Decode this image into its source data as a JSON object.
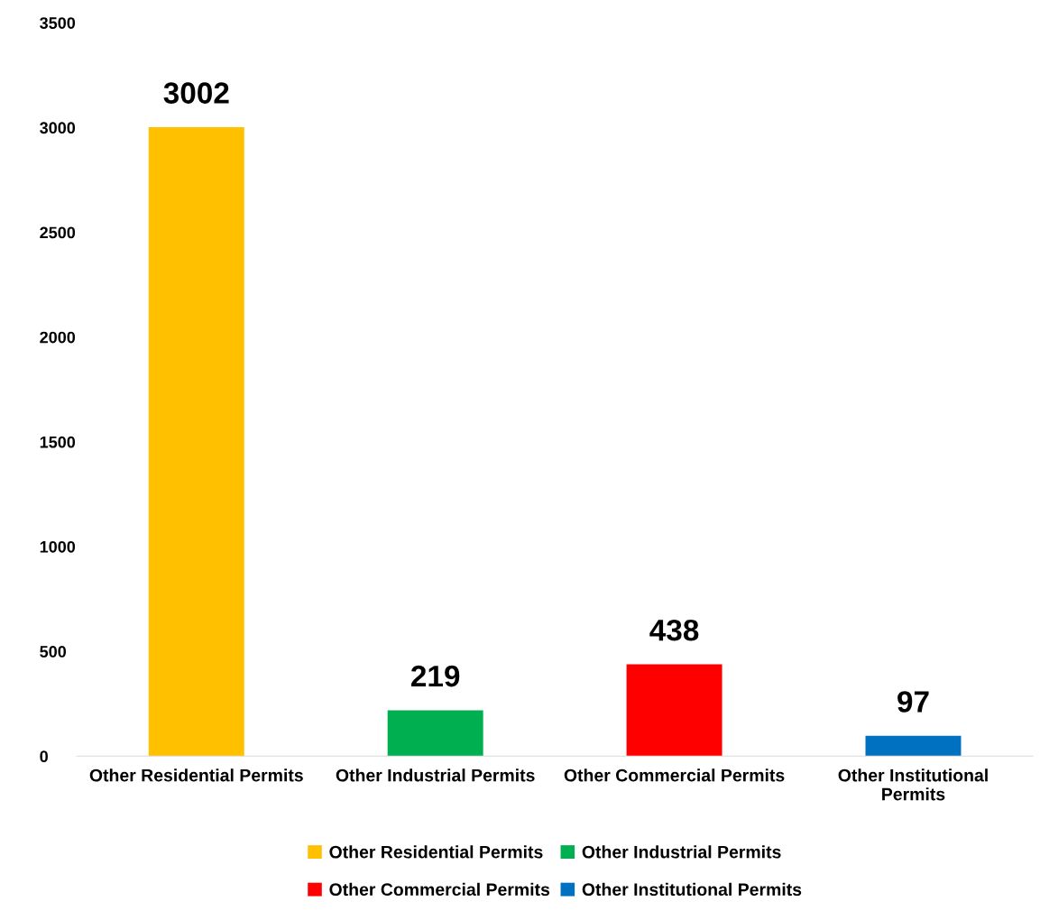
{
  "chart_data": {
    "type": "bar",
    "categories": [
      "Other Residential Permits",
      "Other Industrial Permits",
      "Other Commercial Permits",
      "Other Institutional\nPermits"
    ],
    "series": [
      {
        "name": "Other Residential Permits",
        "color": "#ffc000",
        "values": [
          3002,
          null,
          null,
          null
        ]
      },
      {
        "name": "Other Industrial Permits",
        "color": "#00b050",
        "values": [
          null,
          219,
          null,
          null
        ]
      },
      {
        "name": "Other Commercial Permits",
        "color": "#ff0000",
        "values": [
          null,
          null,
          438,
          null
        ]
      },
      {
        "name": "Other Institutional Permits",
        "color": "#0070c0",
        "values": [
          null,
          null,
          null,
          97
        ]
      }
    ],
    "ylim": [
      0,
      3500
    ],
    "yticks": [
      0,
      500,
      1000,
      1500,
      2000,
      2500,
      3000,
      3500
    ],
    "data_labels": true,
    "grid": false,
    "legend": "bottom"
  }
}
